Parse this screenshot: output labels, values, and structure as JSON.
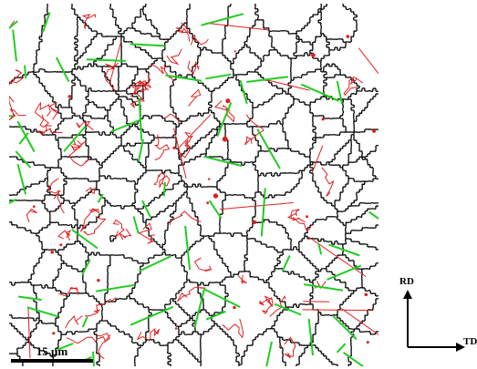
{
  "figure": {
    "scale_bar_label": "15 μm",
    "axis_rd_label": "RD",
    "axis_td_label": "TD",
    "colors": {
      "grain_boundary": "#000000",
      "twin_boundary_red": "#e02020",
      "twin_boundary_green": "#22cc22",
      "background": "#ffffff"
    }
  }
}
